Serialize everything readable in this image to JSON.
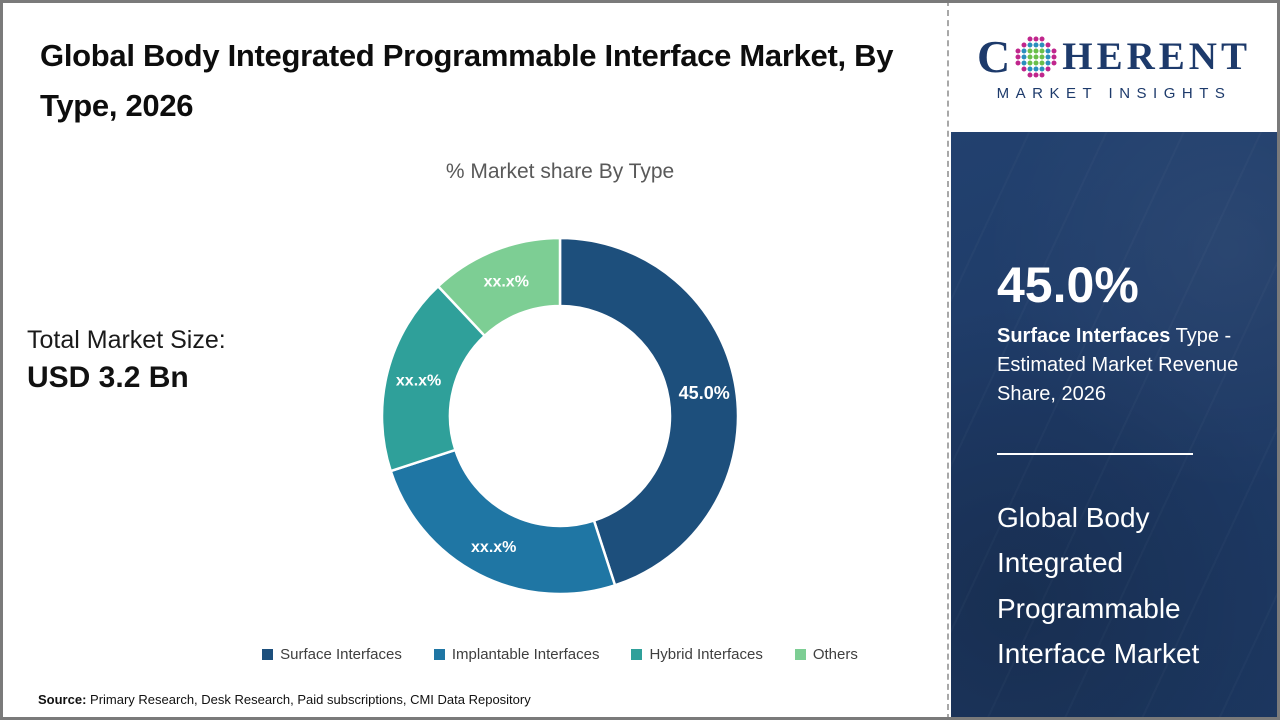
{
  "header": {
    "title": "Global Body Integrated Programmable Interface Market, By Type, 2026"
  },
  "logo": {
    "word_start": "C",
    "word_end": "HERENT",
    "subtitle": "MARKET INSIGHTS",
    "colors": {
      "navy": "#1d3a6b",
      "green": "#6abf4a",
      "blue": "#2a8fbd",
      "magenta": "#c0268c"
    }
  },
  "left_panel": {
    "market_size_label": "Total Market Size:",
    "market_size_value": "USD 3.2 Bn"
  },
  "chart_data": {
    "type": "pie",
    "donut": true,
    "title": "% Market share By Type",
    "legend_position": "bottom",
    "start_angle_deg": 0,
    "direction": "clockwise",
    "segments": [
      {
        "label": "Surface Interfaces",
        "value": 45.0,
        "display": "45.0%",
        "color": "#1d4f7c",
        "value_is_estimated": false
      },
      {
        "label": "Implantable Interfaces",
        "value": 25.0,
        "display": "xx.x%",
        "color": "#1f76a4",
        "value_is_estimated": true
      },
      {
        "label": "Hybrid Interfaces",
        "value": 18.0,
        "display": "xx.x%",
        "color": "#2fa09a",
        "value_is_estimated": true
      },
      {
        "label": "Others",
        "value": 12.0,
        "display": "xx.x%",
        "color": "#7dce94",
        "value_is_estimated": true
      }
    ]
  },
  "sidebar": {
    "stat_value": "45.0%",
    "stat_desc_bold": "Surface Interfaces",
    "stat_desc_rest": " Type - Estimated Market Revenue Share, 2026",
    "market_name": "Global Body Integrated Programmable Interface Market",
    "background": "#1e3a66"
  },
  "footer": {
    "source_label": "Source:",
    "source_text": " Primary Research, Desk Research, Paid subscriptions, CMI Data Repository"
  }
}
